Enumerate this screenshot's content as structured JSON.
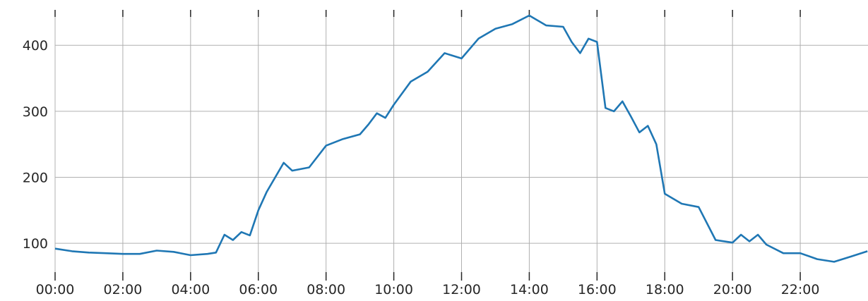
{
  "chart_data": {
    "type": "line",
    "title": "",
    "xlabel": "",
    "ylabel": "",
    "xlim_hours": [
      0,
      24
    ],
    "ylim": [
      50,
      460
    ],
    "grid": true,
    "x_ticks": [
      "00:00",
      "02:00",
      "04:00",
      "06:00",
      "08:00",
      "10:00",
      "12:00",
      "14:00",
      "16:00",
      "18:00",
      "20:00",
      "22:00"
    ],
    "y_ticks": [
      100,
      200,
      300,
      400
    ],
    "line_color": "#1f77b4",
    "series": [
      {
        "x": [
          "00:00",
          "00:30",
          "01:00",
          "01:30",
          "02:00",
          "02:30",
          "03:00",
          "03:30",
          "04:00",
          "04:30",
          "04:45",
          "05:00",
          "05:15",
          "05:30",
          "05:45",
          "06:00",
          "06:15",
          "06:30",
          "06:45",
          "07:00",
          "07:30",
          "08:00",
          "08:30",
          "09:00",
          "09:15",
          "09:30",
          "09:45",
          "10:00",
          "10:30",
          "11:00",
          "11:30",
          "12:00",
          "12:30",
          "13:00",
          "13:30",
          "14:00",
          "14:30",
          "15:00",
          "15:15",
          "15:30",
          "15:45",
          "16:00",
          "16:15",
          "16:30",
          "16:45",
          "17:00",
          "17:15",
          "17:30",
          "17:45",
          "18:00",
          "18:30",
          "19:00",
          "19:30",
          "20:00",
          "20:15",
          "20:30",
          "20:45",
          "21:00",
          "21:30",
          "22:00",
          "22:30",
          "23:00",
          "23:30",
          "23:59"
        ],
        "values": [
          92,
          88,
          86,
          85,
          84,
          84,
          89,
          87,
          82,
          84,
          86,
          113,
          105,
          117,
          112,
          150,
          178,
          200,
          222,
          210,
          215,
          248,
          258,
          265,
          280,
          297,
          290,
          310,
          345,
          360,
          388,
          380,
          410,
          425,
          432,
          445,
          430,
          428,
          405,
          388,
          410,
          405,
          305,
          300,
          315,
          292,
          268,
          278,
          250,
          175,
          160,
          155,
          105,
          101,
          113,
          103,
          113,
          98,
          85,
          85,
          76,
          72,
          80,
          88
        ]
      }
    ]
  }
}
